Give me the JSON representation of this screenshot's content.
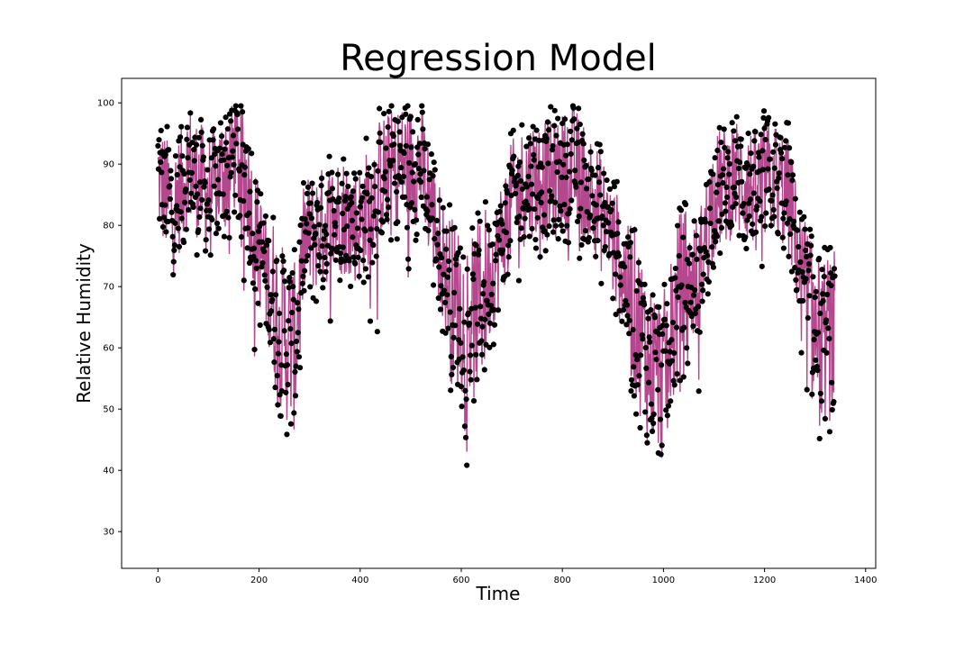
{
  "chart_data": {
    "type": "scatter",
    "title": "Regression Model",
    "xlabel": "Time",
    "ylabel": "Relative Humidity",
    "xlim": [
      -72,
      1420
    ],
    "ylim": [
      24,
      104
    ],
    "xticks": [
      0,
      200,
      400,
      600,
      800,
      1000,
      1200,
      1400
    ],
    "yticks": [
      30,
      40,
      50,
      60,
      70,
      80,
      90,
      100
    ],
    "grid": false,
    "legend": "none",
    "n_points": 1340,
    "colors": {
      "line": "#b5478e",
      "points": "#000000"
    },
    "series": [
      {
        "kind": "line",
        "anchors": [
          [
            0,
            88
          ],
          [
            30,
            82
          ],
          [
            60,
            90
          ],
          [
            100,
            85
          ],
          [
            150,
            92
          ],
          [
            170,
            90
          ],
          [
            190,
            80
          ],
          [
            220,
            70
          ],
          [
            250,
            62
          ],
          [
            270,
            60
          ],
          [
            290,
            78
          ],
          [
            330,
            80
          ],
          [
            360,
            82
          ],
          [
            400,
            80
          ],
          [
            440,
            88
          ],
          [
            480,
            90
          ],
          [
            520,
            90
          ],
          [
            550,
            80
          ],
          [
            580,
            68
          ],
          [
            620,
            64
          ],
          [
            660,
            72
          ],
          [
            700,
            84
          ],
          [
            740,
            88
          ],
          [
            780,
            87
          ],
          [
            820,
            90
          ],
          [
            860,
            85
          ],
          [
            890,
            80
          ],
          [
            930,
            70
          ],
          [
            970,
            58
          ],
          [
            1000,
            55
          ],
          [
            1030,
            68
          ],
          [
            1070,
            72
          ],
          [
            1100,
            85
          ],
          [
            1140,
            88
          ],
          [
            1180,
            86
          ],
          [
            1220,
            88
          ],
          [
            1250,
            84
          ],
          [
            1280,
            68
          ],
          [
            1310,
            60
          ],
          [
            1330,
            62
          ],
          [
            1340,
            62
          ]
        ]
      },
      {
        "kind": "scatter",
        "anchors": [
          [
            0,
            89
          ],
          [
            30,
            83
          ],
          [
            60,
            91
          ],
          [
            100,
            86
          ],
          [
            150,
            92
          ],
          [
            170,
            90
          ],
          [
            190,
            81
          ],
          [
            220,
            71
          ],
          [
            250,
            63
          ],
          [
            270,
            61
          ],
          [
            290,
            79
          ],
          [
            330,
            81
          ],
          [
            360,
            82
          ],
          [
            400,
            80
          ],
          [
            440,
            88
          ],
          [
            480,
            90
          ],
          [
            520,
            90
          ],
          [
            550,
            80
          ],
          [
            580,
            69
          ],
          [
            620,
            65
          ],
          [
            660,
            73
          ],
          [
            700,
            84
          ],
          [
            740,
            88
          ],
          [
            780,
            87
          ],
          [
            820,
            90
          ],
          [
            860,
            85
          ],
          [
            890,
            80
          ],
          [
            930,
            71
          ],
          [
            970,
            59
          ],
          [
            1000,
            56
          ],
          [
            1030,
            68
          ],
          [
            1070,
            72
          ],
          [
            1100,
            85
          ],
          [
            1140,
            88
          ],
          [
            1180,
            86
          ],
          [
            1220,
            88
          ],
          [
            1250,
            84
          ],
          [
            1280,
            69
          ],
          [
            1310,
            61
          ],
          [
            1330,
            63
          ],
          [
            1340,
            63
          ]
        ]
      }
    ]
  }
}
